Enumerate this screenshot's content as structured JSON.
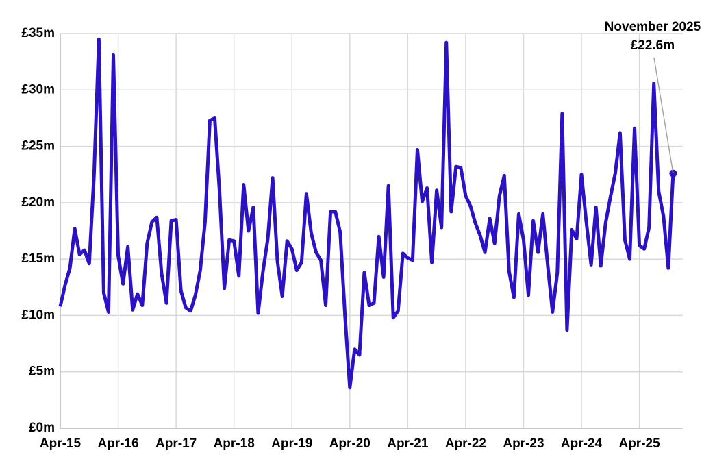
{
  "chart_data": {
    "type": "line",
    "categories": [
      "Apr-15",
      null,
      null,
      null,
      null,
      null,
      null,
      null,
      null,
      null,
      null,
      null,
      "Apr-16",
      null,
      null,
      null,
      null,
      null,
      null,
      null,
      null,
      null,
      null,
      null,
      "Apr-17",
      null,
      null,
      null,
      null,
      null,
      null,
      null,
      null,
      null,
      null,
      null,
      "Apr-18",
      null,
      null,
      null,
      null,
      null,
      null,
      null,
      null,
      null,
      null,
      null,
      "Apr-19",
      null,
      null,
      null,
      null,
      null,
      null,
      null,
      null,
      null,
      null,
      null,
      "Apr-20",
      null,
      null,
      null,
      null,
      null,
      null,
      null,
      null,
      null,
      null,
      null,
      "Apr-21",
      null,
      null,
      null,
      null,
      null,
      null,
      null,
      null,
      null,
      null,
      null,
      "Apr-22",
      null,
      null,
      null,
      null,
      null,
      null,
      null,
      null,
      null,
      null,
      null,
      "Apr-23",
      null,
      null,
      null,
      null,
      null,
      null,
      null,
      null,
      null,
      null,
      null,
      "Apr-24",
      null,
      null,
      null,
      null,
      null,
      null,
      null,
      null,
      null,
      null,
      null,
      "Apr-25",
      null,
      null,
      null,
      null,
      null,
      null,
      null
    ],
    "values": [
      10.8,
      12.7,
      14.2,
      17.7,
      15.4,
      15.8,
      14.6,
      22.5,
      34.5,
      12.0,
      10.3,
      33.1,
      15.3,
      12.8,
      16.1,
      10.5,
      11.9,
      10.9,
      16.4,
      18.3,
      18.7,
      13.7,
      11.1,
      18.4,
      18.5,
      12.2,
      10.7,
      10.4,
      11.8,
      14.0,
      18.3,
      27.3,
      27.5,
      21.0,
      12.4,
      16.7,
      16.6,
      13.5,
      21.6,
      17.5,
      19.6,
      10.2,
      13.9,
      16.8,
      22.2,
      14.8,
      11.7,
      16.6,
      15.9,
      14.0,
      14.7,
      20.8,
      17.3,
      15.6,
      14.9,
      10.9,
      19.2,
      19.2,
      17.4,
      10.0,
      3.6,
      7.0,
      6.5,
      13.8,
      10.9,
      11.1,
      17.0,
      13.4,
      21.5,
      9.8,
      10.4,
      15.5,
      15.1,
      14.9,
      24.7,
      20.1,
      21.3,
      14.7,
      21.1,
      17.8,
      34.2,
      19.2,
      23.2,
      23.1,
      20.6,
      19.7,
      18.2,
      17.1,
      15.6,
      18.6,
      16.4,
      20.6,
      22.4,
      13.9,
      11.6,
      19.0,
      16.7,
      11.8,
      18.4,
      15.6,
      19.0,
      14.5,
      10.3,
      13.8,
      27.9,
      8.7,
      17.6,
      16.8,
      22.5,
      18.3,
      14.5,
      19.6,
      14.4,
      18.2,
      20.5,
      22.6,
      26.2,
      16.7,
      15.0,
      26.6,
      16.2,
      15.9,
      17.8,
      30.6,
      21.0,
      18.8,
      14.2,
      22.6
    ],
    "color": "#2b12c4",
    "ylim": [
      0,
      35
    ],
    "yticks": [
      {
        "value": 0,
        "label": "£0m"
      },
      {
        "value": 5,
        "label": "£5m"
      },
      {
        "value": 10,
        "label": "£10m"
      },
      {
        "value": 15,
        "label": "£15m"
      },
      {
        "value": 20,
        "label": "£20m"
      },
      {
        "value": 25,
        "label": "£25m"
      },
      {
        "value": 30,
        "label": "£30m"
      },
      {
        "value": 35,
        "label": "£35m"
      }
    ],
    "grid": true,
    "annotation": {
      "label": "November 2025",
      "value_label": "£22.6m"
    }
  }
}
